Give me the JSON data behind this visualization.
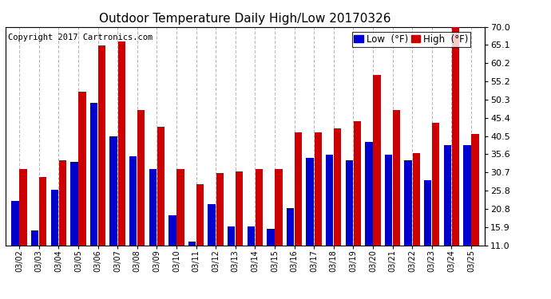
{
  "title": "Outdoor Temperature Daily High/Low 20170326",
  "copyright": "Copyright 2017 Cartronics.com",
  "legend_low": "Low  (°F)",
  "legend_high": "High  (°F)",
  "dates": [
    "03/02",
    "03/03",
    "03/04",
    "03/05",
    "03/06",
    "03/07",
    "03/08",
    "03/09",
    "03/10",
    "03/11",
    "03/12",
    "03/13",
    "03/14",
    "03/15",
    "03/16",
    "03/17",
    "03/18",
    "03/19",
    "03/20",
    "03/21",
    "03/22",
    "03/23",
    "03/24",
    "03/25"
  ],
  "highs": [
    31.5,
    29.5,
    34.0,
    52.5,
    65.0,
    66.0,
    47.5,
    43.0,
    31.5,
    27.5,
    30.5,
    31.0,
    31.5,
    31.5,
    41.5,
    41.5,
    42.5,
    44.5,
    57.0,
    47.5,
    36.0,
    44.0,
    70.0,
    41.0
  ],
  "lows": [
    23.0,
    15.0,
    26.0,
    33.5,
    49.5,
    40.5,
    35.0,
    31.5,
    19.0,
    12.0,
    22.0,
    16.0,
    16.0,
    15.5,
    21.0,
    34.5,
    35.5,
    34.0,
    39.0,
    35.5,
    34.0,
    28.5,
    38.0,
    38.0
  ],
  "ylim_min": 11.0,
  "ylim_max": 70.0,
  "yticks": [
    11.0,
    15.9,
    20.8,
    25.8,
    30.7,
    35.6,
    40.5,
    45.4,
    50.3,
    55.2,
    60.2,
    65.1,
    70.0
  ],
  "bar_color_low": "#0000cc",
  "bar_color_high": "#cc0000",
  "bg_color": "#ffffff",
  "grid_color": "#aaaaaa",
  "title_fontsize": 11,
  "copyright_fontsize": 7.5,
  "legend_fontsize": 8.5,
  "tick_fontsize": 8,
  "xtick_fontsize": 7
}
